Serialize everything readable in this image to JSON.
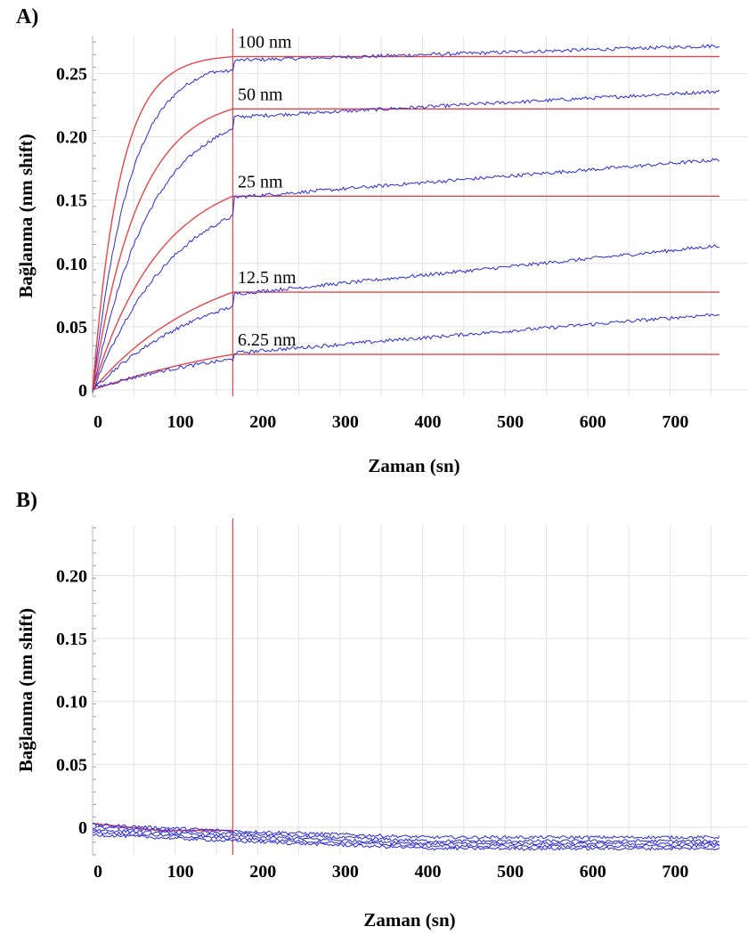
{
  "panels": {
    "a": {
      "label": "A)"
    },
    "b": {
      "label": "B)"
    }
  },
  "colors": {
    "sensorgram": "#2b2bd6",
    "fit": "#e8454a",
    "grid": "#e2e2e2",
    "marker": "#e8454a"
  },
  "chart_data": [
    {
      "type": "line",
      "panel": "A)",
      "xlabel": "Zaman (sn)",
      "ylabel": "Bağlanma (nm shift)",
      "xlim": [
        0,
        760
      ],
      "ylim": [
        -0.005,
        0.28
      ],
      "x_ticks": [
        0,
        100,
        200,
        300,
        400,
        500,
        600,
        700
      ],
      "y_ticks": [
        0,
        0.05,
        0.1,
        0.15,
        0.2,
        0.25
      ],
      "y_tick_labels": [
        "0",
        "0.05",
        "0.10",
        "0.15",
        "0.20",
        "0.25"
      ],
      "grid": true,
      "dissociation_start": 170,
      "series": [
        {
          "name": "100 nm",
          "plateau": 0.265,
          "k": 0.03,
          "end_value": 0.275
        },
        {
          "name": "50 nm",
          "plateau": 0.233,
          "k": 0.018,
          "end_value": 0.238
        },
        {
          "name": "25 nm",
          "plateau": 0.176,
          "k": 0.012,
          "end_value": 0.183
        },
        {
          "name": "12.5 nm",
          "plateau": 0.111,
          "k": 0.007,
          "end_value": 0.114
        },
        {
          "name": "6.25 nm",
          "plateau": 0.057,
          "k": 0.004,
          "end_value": 0.059
        }
      ]
    },
    {
      "type": "line",
      "panel": "B)",
      "xlabel": "Zaman (sn)",
      "ylabel": "Bağlanma (nm shift)",
      "xlim": [
        0,
        760
      ],
      "ylim": [
        -0.022,
        0.24
      ],
      "x_ticks": [
        0,
        100,
        200,
        300,
        400,
        500,
        600,
        700
      ],
      "y_ticks": [
        0,
        0.05,
        0.1,
        0.15,
        0.2
      ],
      "y_tick_labels": [
        "0",
        "0.05",
        "0.10",
        "0.15",
        "0.20"
      ],
      "grid": true,
      "dissociation_start": 170,
      "series": [
        {
          "start": 0.002,
          "mid": -0.003,
          "end": -0.008
        },
        {
          "start": 0.0,
          "mid": -0.005,
          "end": -0.011
        },
        {
          "start": -0.002,
          "mid": -0.007,
          "end": -0.013
        },
        {
          "start": -0.004,
          "mid": -0.009,
          "end": -0.015
        },
        {
          "start": -0.006,
          "mid": -0.011,
          "end": -0.017
        }
      ]
    }
  ]
}
